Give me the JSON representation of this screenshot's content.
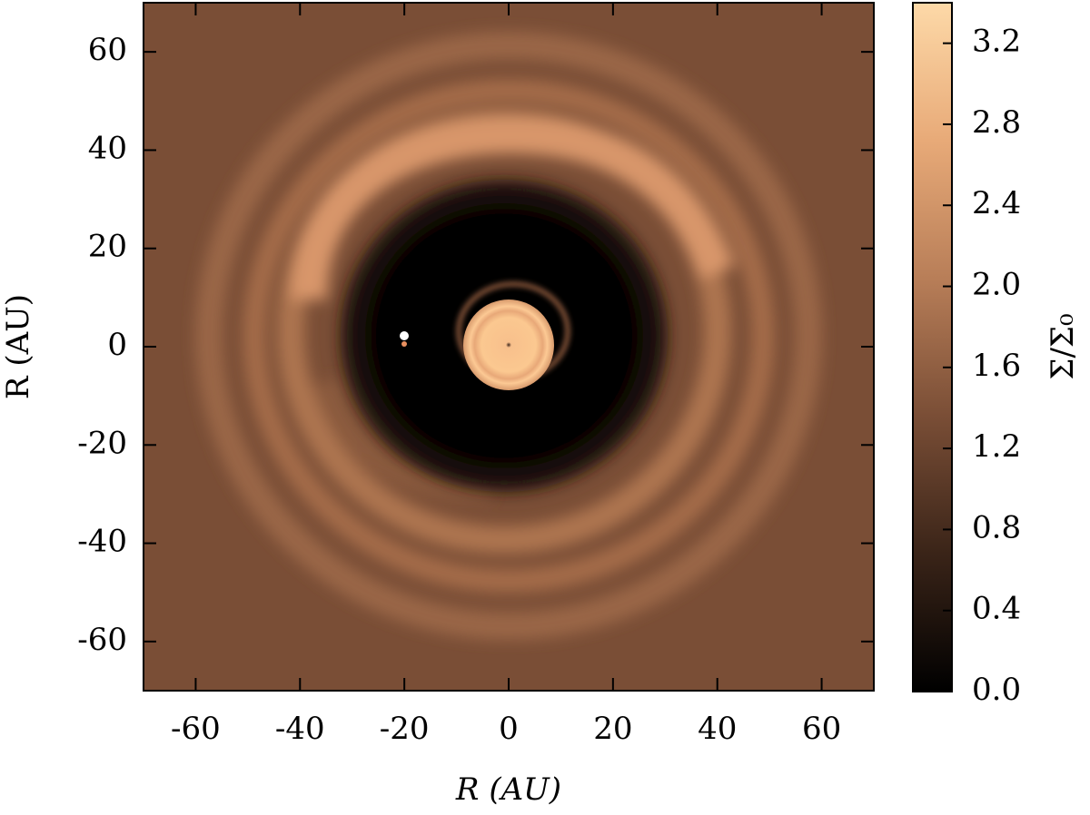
{
  "chart_data": {
    "type": "heatmap",
    "xlabel": "R (AU)",
    "ylabel": "R (AU)",
    "xlim": [
      -70,
      70
    ],
    "ylim": [
      -70,
      70
    ],
    "xticks": [
      -60,
      -40,
      -20,
      0,
      20,
      40,
      60
    ],
    "yticks": [
      -60,
      -40,
      -20,
      0,
      20,
      40,
      60
    ],
    "colorbar": {
      "label": "Σ/Σ₀",
      "clim": [
        0,
        3.4
      ],
      "colormap": [
        "#000000",
        "#3a2418",
        "#7a4e36",
        "#b87e58",
        "#e8aa78",
        "#fdd9a8"
      ],
      "ticks": [
        {
          "value": 0,
          "label": "0.0"
        },
        {
          "value": 0.4,
          "label": "0.4"
        },
        {
          "value": 0.8,
          "label": "0.8"
        },
        {
          "value": 1.2,
          "label": "1.2"
        },
        {
          "value": 1.6,
          "label": "1.6"
        },
        {
          "value": 2.0,
          "label": "2.0"
        },
        {
          "value": 2.4,
          "label": "2.4"
        },
        {
          "value": 2.8,
          "label": "2.8"
        },
        {
          "value": 3.2,
          "label": "3.2"
        }
      ]
    }
  }
}
